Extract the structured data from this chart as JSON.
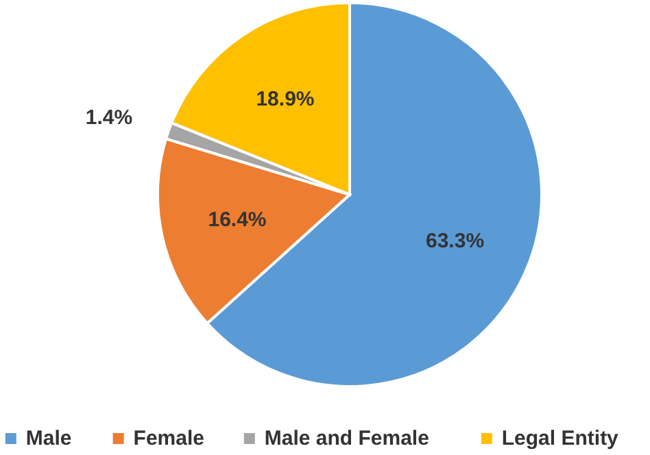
{
  "chart_data": {
    "type": "pie",
    "categories": [
      "Male",
      "Female",
      "Male and Female",
      "Legal Entity"
    ],
    "values": [
      63.3,
      16.4,
      1.4,
      18.9
    ],
    "colors": [
      "#5b9bd5",
      "#ed7d31",
      "#a5a5a5",
      "#ffc000"
    ],
    "value_labels": [
      "63.3%",
      "16.4%",
      "1.4%",
      "18.9%"
    ],
    "legend": "bottom"
  }
}
